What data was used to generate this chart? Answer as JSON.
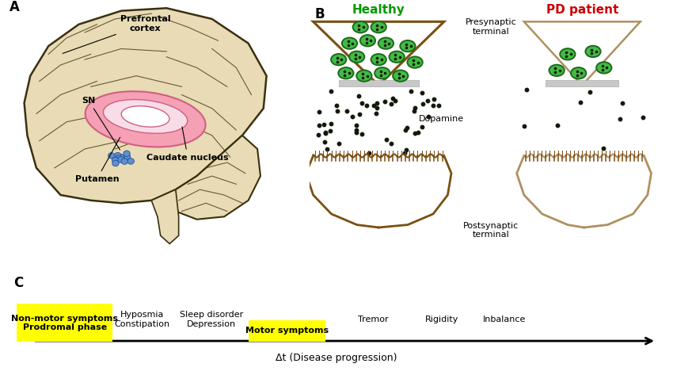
{
  "bg_color": "#ffffff",
  "panel_A_label": "A",
  "panel_B_label": "B",
  "panel_C_label": "C",
  "brain_color": "#e8dbb5",
  "brain_outline_color": "#3a3010",
  "striatum_color": "#f08090",
  "sn_color": "#5a8acc",
  "healthy_label": "Healthy",
  "pd_label": "PD patient",
  "healthy_color": "#009900",
  "pd_color": "#cc0000",
  "presynaptic_label": "Presynaptic\nterminal",
  "postsynaptic_label": "Postsynaptic\nterminal",
  "dopamine_label": "Dopamine",
  "synapse_brown_h": "#7a5010",
  "synapse_brown_pd": "#b09060",
  "dopamine_dot_color": "#111a08",
  "vesicle_edge_green": "#1a6a1a",
  "vesicle_fill_green": "#44bb44",
  "receptor_color": "#7a4a10",
  "timeline_labels": [
    "Non-motor symptoms\nProdromal phase",
    "Hyposmia\nConstipation",
    "Sleep disorder\nDepression",
    "Motor symptoms",
    "Tremor",
    "Rigidity",
    "Inbalance"
  ],
  "timeline_highlight": [
    0,
    3
  ],
  "highlight_color": "#ffff00",
  "arrow_label": "Δt (Disease progression)",
  "sn_label": "SN",
  "prefrontal_label": "Prefrontal\ncortex",
  "caudate_nucleus_label": "Caudate nucleus",
  "putamen_label": "Putamen"
}
